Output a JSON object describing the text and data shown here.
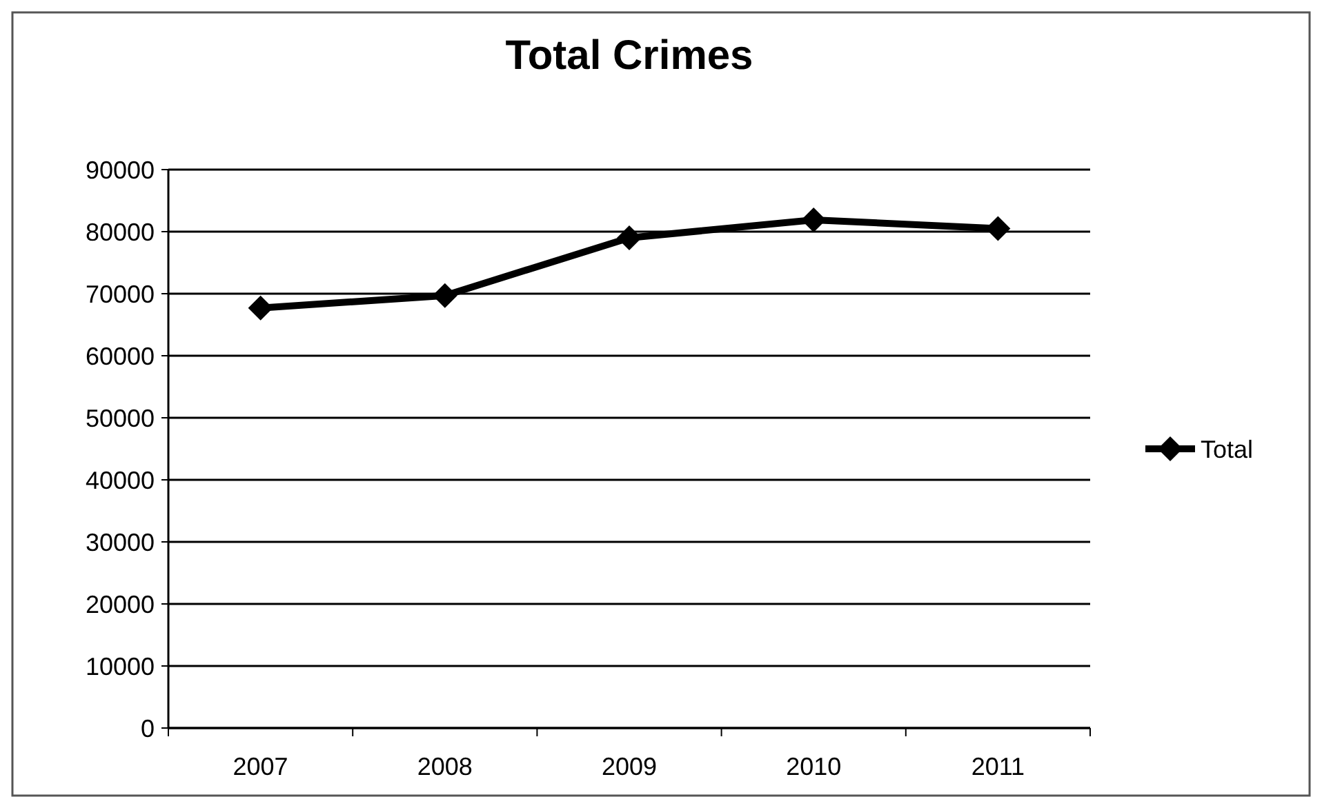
{
  "chart_data": {
    "type": "line",
    "title": "Total Crimes",
    "categories": [
      "2007",
      "2008",
      "2009",
      "2010",
      "2011"
    ],
    "series": [
      {
        "name": "Total",
        "color": "#000000",
        "values": [
          67700,
          69700,
          79000,
          81900,
          80500
        ]
      }
    ],
    "ylim": [
      0,
      90000
    ],
    "yticks": [
      0,
      10000,
      20000,
      30000,
      40000,
      50000,
      60000,
      70000,
      80000,
      90000
    ],
    "grid": "y",
    "legend": "right",
    "marker": "diamond",
    "line_style": "solid"
  }
}
